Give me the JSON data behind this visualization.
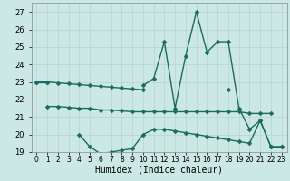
{
  "xlabel": "Humidex (Indice chaleur)",
  "x": [
    0,
    1,
    2,
    3,
    4,
    5,
    6,
    7,
    8,
    9,
    10,
    11,
    12,
    13,
    14,
    15,
    16,
    17,
    18,
    19,
    20,
    21,
    22,
    23
  ],
  "line_volatile": [
    23.0,
    23.0,
    null,
    null,
    null,
    null,
    null,
    null,
    null,
    null,
    22.8,
    23.2,
    25.3,
    21.5,
    24.5,
    27.0,
    24.7,
    25.3,
    25.3,
    21.5,
    20.3,
    20.8,
    19.3,
    19.3
  ],
  "line_flat": [
    null,
    21.6,
    21.6,
    21.55,
    21.5,
    21.5,
    21.4,
    21.4,
    21.35,
    21.3,
    21.3,
    21.3,
    21.3,
    21.3,
    21.3,
    21.3,
    21.3,
    21.3,
    21.3,
    21.3,
    21.2,
    21.2,
    21.2,
    null
  ],
  "line_lower": [
    null,
    null,
    null,
    null,
    20.0,
    19.3,
    18.9,
    19.0,
    19.1,
    19.2,
    20.0,
    20.3,
    20.3,
    20.2,
    20.1,
    20.0,
    19.9,
    19.8,
    19.7,
    19.6,
    19.5,
    20.8,
    19.3,
    19.3
  ],
  "line_top_flat": [
    23.0,
    23.0,
    22.95,
    22.9,
    22.85,
    22.8,
    22.75,
    22.7,
    22.65,
    22.6,
    22.55,
    null,
    null,
    null,
    null,
    null,
    null,
    null,
    22.55,
    null,
    null,
    null,
    null,
    null
  ],
  "ylim": [
    19,
    27.5
  ],
  "yticks": [
    19,
    20,
    21,
    22,
    23,
    24,
    25,
    26,
    27
  ],
  "xlim": [
    -0.5,
    23.5
  ],
  "bg_color": "#cce8e4",
  "grid_color": "#b8d8d2",
  "line_color": "#1a6b60",
  "line_width": 1.0,
  "marker_size": 2.5
}
